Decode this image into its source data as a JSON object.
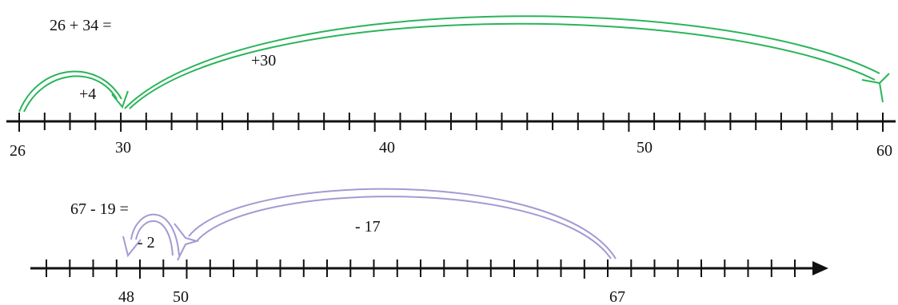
{
  "number_line_1": {
    "equation": "26 + 34 =",
    "start": 26,
    "end": 60,
    "labels": [
      "26",
      "30",
      "40",
      "50",
      "60"
    ],
    "label_values": [
      26,
      30,
      40,
      50,
      60
    ],
    "jumps": [
      {
        "from": 26,
        "to": 30,
        "label": "+4"
      },
      {
        "from": 30,
        "to": 60,
        "label": "+30"
      }
    ],
    "color": "#2ab45a"
  },
  "number_line_2": {
    "equation": "67 - 19 =",
    "start": 44,
    "end": 76,
    "labels": [
      "48",
      "50",
      "67"
    ],
    "label_values": [
      48,
      50,
      67
    ],
    "jumps": [
      {
        "from": 67,
        "to": 50,
        "label": "- 17"
      },
      {
        "from": 50,
        "to": 48,
        "label": "- 2"
      }
    ],
    "color": "#a29bd2"
  }
}
